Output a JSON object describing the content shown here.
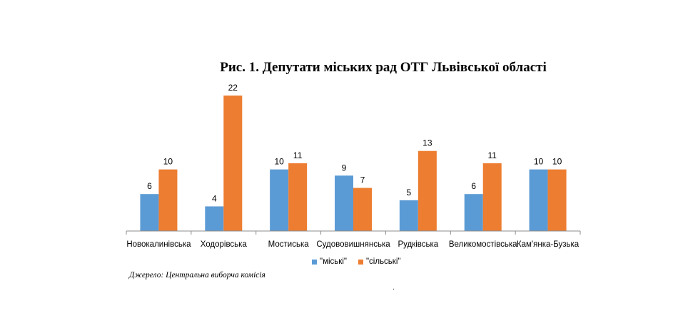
{
  "chart_data": {
    "type": "bar",
    "title": "Рис. 1. Депутати міських рад ОТГ Львівської області",
    "categories": [
      "Новокалинівська",
      "Ходорівська",
      "Мостиська",
      "Судововишнянська",
      "Рудківська",
      "Великомостівська",
      "Кам'янка-Бузька"
    ],
    "series": [
      {
        "name": "\"міські\"",
        "color": "#5b9bd5",
        "values": [
          6,
          4,
          10,
          9,
          5,
          6,
          10
        ]
      },
      {
        "name": "\"сільські\"",
        "color": "#ed7d31",
        "values": [
          10,
          22,
          11,
          7,
          13,
          11,
          10
        ]
      }
    ],
    "ylim": [
      0,
      22
    ],
    "xlabel": "",
    "ylabel": "",
    "grid": false,
    "legend": "bottom"
  },
  "source": "Джерело: Центральна виборча комісія",
  "footer_mark": "."
}
